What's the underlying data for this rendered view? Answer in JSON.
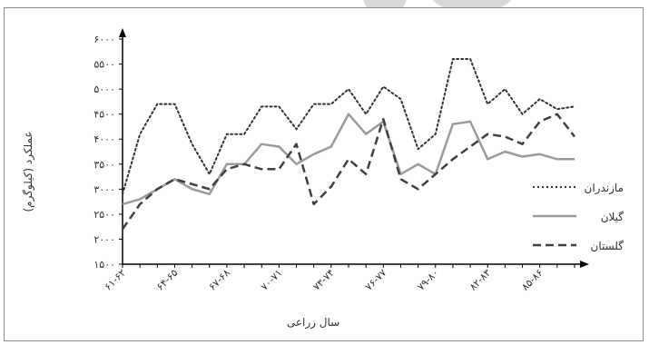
{
  "chart_data": {
    "type": "line",
    "title": "",
    "xlabel": "سال زراعی",
    "ylabel": "عملکرد (کیلوگرم)",
    "ylim": [
      1500,
      6000
    ],
    "y_ticks": [
      1500,
      2000,
      2500,
      3000,
      3500,
      4000,
      4500,
      5000,
      5500,
      6000
    ],
    "y_tick_labels": [
      "۱۵۰۰",
      "۲۰۰۰",
      "۲۵۰۰",
      "۳۰۰۰",
      "۳۵۰۰",
      "۴۰۰۰",
      "۴۵۰۰",
      "۵۰۰۰",
      "۵۵۰۰",
      "۶۰۰۰"
    ],
    "x_tick_labels": [
      "۶۱-۶۲",
      "۶۴-۶۵",
      "۶۷-۶۸",
      "۷۰-۷۱",
      "۷۳-۷۴",
      "۷۶-۷۷",
      "۷۹-۸۰",
      "۸۲-۸۳",
      "۸۵-۸۶"
    ],
    "x_tick_every": 3,
    "grid": false,
    "legend_position": "right",
    "series": [
      {
        "name": "مازندران",
        "style": "dotted",
        "color": "#333333",
        "values": [
          2900,
          4100,
          4700,
          4700,
          3900,
          3300,
          4100,
          4100,
          4650,
          4650,
          4200,
          4700,
          4700,
          5000,
          4500,
          5050,
          4800,
          3800,
          4100,
          5600,
          5600,
          4700,
          5000,
          4500,
          4800,
          4600,
          4650
        ]
      },
      {
        "name": "گیلان",
        "style": "solid",
        "color": "#9b9b9b",
        "values": [
          2700,
          2800,
          3000,
          3200,
          3000,
          2900,
          3500,
          3500,
          3900,
          3850,
          3500,
          3700,
          3850,
          4500,
          4100,
          4350,
          3300,
          3500,
          3300,
          4300,
          4350,
          3600,
          3750,
          3650,
          3700,
          3600,
          3600
        ]
      },
      {
        "name": "گلستان",
        "style": "dashed",
        "color": "#3f3f3f",
        "values": [
          2200,
          2700,
          3000,
          3200,
          3100,
          3000,
          3400,
          3500,
          3400,
          3400,
          3900,
          2700,
          3050,
          3600,
          3300,
          4400,
          3200,
          3000,
          3300,
          3600,
          3850,
          4100,
          4050,
          3900,
          4350,
          4500,
          4050
        ]
      }
    ]
  }
}
